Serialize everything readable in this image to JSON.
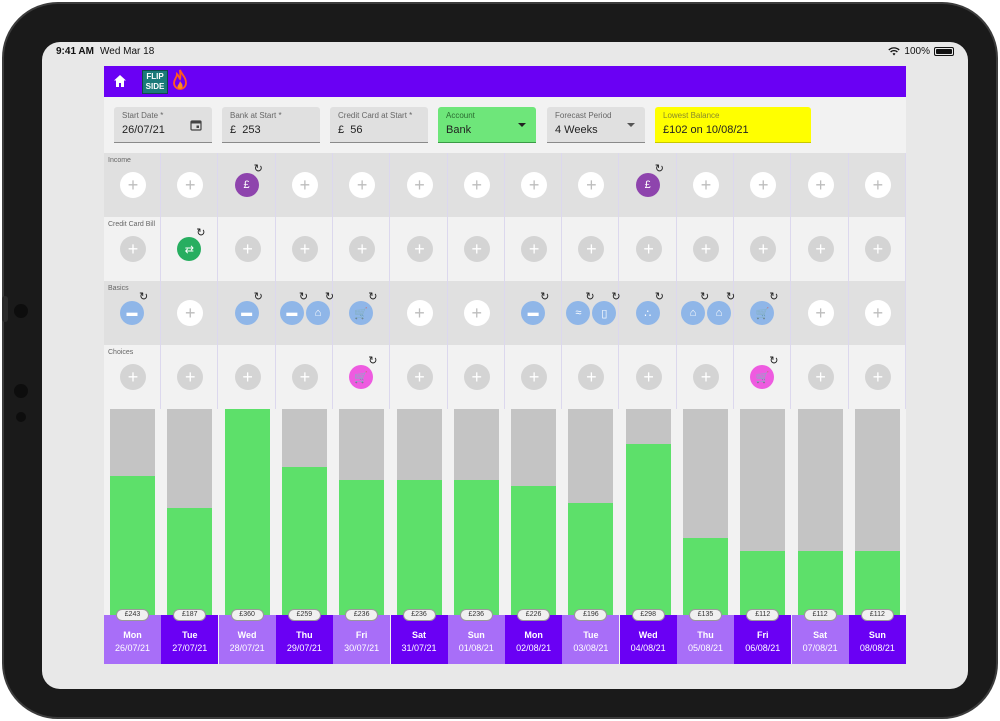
{
  "status": {
    "time": "9:41 AM",
    "date": "Wed Mar 18",
    "battery": "100%"
  },
  "app": {
    "logo_line1": "FLIP",
    "logo_line2": "SIDE"
  },
  "controls": {
    "start_date": {
      "label": "Start Date *",
      "value": "26/07/21"
    },
    "bank": {
      "label": "Bank at Start *",
      "prefix": "£",
      "value": "253"
    },
    "credit": {
      "label": "Credit Card at Start *",
      "prefix": "£",
      "value": "56"
    },
    "account": {
      "label": "Account",
      "value": "Bank"
    },
    "period": {
      "label": "Forecast Period",
      "value": "4 Weeks"
    },
    "lowest": {
      "label": "Lowest Balance",
      "value": "£102 on 10/08/21"
    }
  },
  "rows": {
    "income": "Income",
    "credit": "Credit Card Bill",
    "basics": "Basics",
    "choices": "Choices"
  },
  "icons": {
    "income": [
      "",
      "",
      "wallet-icon",
      "",
      "",
      "",
      "",
      "",
      "",
      "wallet-icon",
      "",
      "",
      "",
      ""
    ],
    "credit": [
      "",
      "transfer-icon",
      "",
      "",
      "",
      "",
      "",
      "",
      "",
      "",
      "",
      "",
      "",
      ""
    ],
    "choices": [
      "",
      "",
      "",
      "",
      "cart-icon",
      "",
      "",
      "",
      "",
      "",
      "",
      "cart-icon",
      "",
      ""
    ]
  },
  "days": [
    {
      "name": "Mon",
      "date": "26/07/21",
      "balance": "£243",
      "value": 243
    },
    {
      "name": "Tue",
      "date": "27/07/21",
      "balance": "£187",
      "value": 187
    },
    {
      "name": "Wed",
      "date": "28/07/21",
      "balance": "£360",
      "value": 360
    },
    {
      "name": "Thu",
      "date": "29/07/21",
      "balance": "£259",
      "value": 259
    },
    {
      "name": "Fri",
      "date": "30/07/21",
      "balance": "£236",
      "value": 236
    },
    {
      "name": "Sat",
      "date": "31/07/21",
      "balance": "£236",
      "value": 236
    },
    {
      "name": "Sun",
      "date": "01/08/21",
      "balance": "£236",
      "value": 236
    },
    {
      "name": "Mon",
      "date": "02/08/21",
      "balance": "£226",
      "value": 226
    },
    {
      "name": "Tue",
      "date": "03/08/21",
      "balance": "£196",
      "value": 196
    },
    {
      "name": "Wed",
      "date": "04/08/21",
      "balance": "£298",
      "value": 298
    },
    {
      "name": "Thu",
      "date": "05/08/21",
      "balance": "£135",
      "value": 135
    },
    {
      "name": "Fri",
      "date": "06/08/21",
      "balance": "£112",
      "value": 112
    },
    {
      "name": "Sat",
      "date": "07/08/21",
      "balance": "£112",
      "value": 112
    },
    {
      "name": "Sun",
      "date": "08/08/21",
      "balance": "£112",
      "value": 112
    }
  ],
  "chart_data": {
    "type": "bar",
    "categories": [
      "26/07/21",
      "27/07/21",
      "28/07/21",
      "29/07/21",
      "30/07/21",
      "31/07/21",
      "01/08/21",
      "02/08/21",
      "03/08/21",
      "04/08/21",
      "05/08/21",
      "06/08/21",
      "07/08/21",
      "08/08/21"
    ],
    "values": [
      243,
      187,
      360,
      259,
      236,
      236,
      236,
      226,
      196,
      298,
      135,
      112,
      112,
      112
    ],
    "ylim": [
      0,
      360
    ]
  },
  "colors": {
    "appbar": "#6a00f4",
    "day_light": "#a86ef8",
    "day_dark": "#6a00f4",
    "bar": "#5de06a",
    "bar_bg": "#c4c4c4",
    "account": "#6ee67a",
    "lowest": "#ffff00"
  }
}
